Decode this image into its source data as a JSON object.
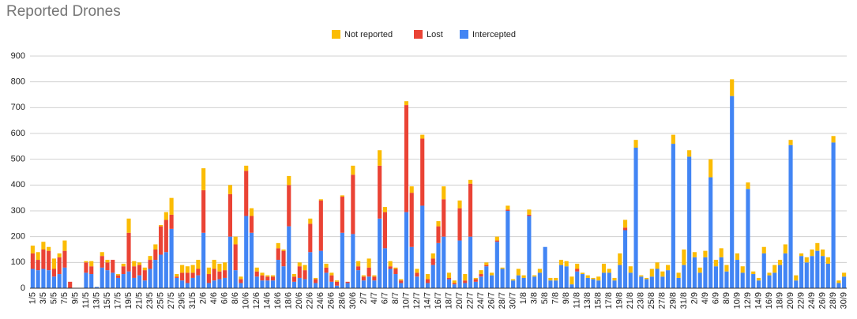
{
  "chart_data": {
    "type": "stacked_bar",
    "title": "Reported Drones",
    "categories": [
      "1/5",
      null,
      "3/5",
      null,
      "5/5",
      null,
      "7/5",
      null,
      "9/5",
      null,
      "11/5",
      null,
      "13/5",
      null,
      "15/5",
      null,
      "17/5",
      null,
      "19/5",
      null,
      "21/5",
      null,
      "23/5",
      null,
      "25/5",
      null,
      "27/5",
      null,
      "29/5",
      null,
      "31/5",
      null,
      "2/6",
      null,
      "4/6",
      null,
      "6/6",
      null,
      "8/6",
      null,
      "10/6",
      null,
      "12/6",
      null,
      "14/6",
      null,
      "16/6",
      null,
      "18/6",
      null,
      "20/6",
      null,
      "22/6",
      null,
      "24/6",
      null,
      "26/6",
      null,
      "28/6",
      null,
      "30/6",
      null,
      "2/7",
      null,
      "4/7",
      null,
      "6/7",
      null,
      "8/7",
      null,
      "10/7",
      null,
      "12/7",
      null,
      "14/7",
      null,
      "16/7",
      null,
      "18/7",
      null,
      "20/7",
      null,
      "22/7",
      null,
      "24/7",
      null,
      "26/7",
      null,
      "28/7",
      null,
      "30/7",
      null,
      "1/8",
      null,
      "3/8",
      null,
      "5/8",
      null,
      "7/8",
      null,
      "9/8",
      null,
      "11/8",
      null,
      "13/8",
      null,
      "15/8",
      null,
      "17/8",
      null,
      "19/8",
      null,
      "21/8",
      null,
      "23/8",
      null,
      "25/8",
      null,
      "27/8",
      null,
      "29/8",
      null,
      "31/8",
      null,
      "2/9",
      null,
      "4/9",
      null,
      "6/9",
      null,
      "8/9",
      null,
      "10/9",
      null,
      "12/9",
      null,
      "14/9",
      null,
      "16/9",
      null,
      "18/9",
      null,
      "20/9",
      null,
      "22/9",
      null,
      "24/9",
      null,
      "26/9",
      null,
      "28/9",
      null,
      "30/9"
    ],
    "series": [
      {
        "name": "Not reported",
        "color": "#fbbc04",
        "values": [
          30,
          30,
          30,
          15,
          40,
          15,
          40,
          0,
          0,
          0,
          5,
          20,
          0,
          15,
          10,
          0,
          5,
          10,
          55,
          20,
          10,
          10,
          15,
          20,
          5,
          30,
          65,
          10,
          30,
          25,
          30,
          35,
          85,
          25,
          35,
          30,
          30,
          35,
          30,
          10,
          20,
          30,
          15,
          10,
          5,
          5,
          20,
          5,
          35,
          10,
          15,
          20,
          20,
          5,
          5,
          15,
          10,
          5,
          5,
          0,
          35,
          20,
          5,
          35,
          5,
          60,
          20,
          20,
          5,
          5,
          15,
          25,
          15,
          15,
          20,
          20,
          20,
          50,
          20,
          10,
          30,
          25,
          15,
          5,
          15,
          10,
          10,
          15,
          5,
          15,
          5,
          25,
          10,
          20,
          5,
          15,
          0,
          10,
          10,
          20,
          20,
          30,
          20,
          5,
          10,
          5,
          15,
          35,
          15,
          10,
          45,
          30,
          25,
          30,
          5,
          5,
          30,
          25,
          20,
          20,
          35,
          20,
          60,
          25,
          20,
          20,
          25,
          70,
          25,
          35,
          25,
          65,
          25,
          25,
          25,
          10,
          10,
          25,
          10,
          30,
          20,
          35,
          20,
          20,
          10,
          20,
          25,
          30,
          25,
          25,
          25,
          10,
          15
        ]
      },
      {
        "name": "Lost",
        "color": "#ea4335",
        "values": [
          60,
          40,
          75,
          75,
          30,
          65,
          65,
          25,
          0,
          0,
          40,
          30,
          0,
          45,
          30,
          50,
          10,
          30,
          150,
          45,
          40,
          40,
          35,
          40,
          110,
          125,
          55,
          5,
          30,
          40,
          20,
          25,
          165,
          35,
          45,
          30,
          30,
          165,
          100,
          15,
          175,
          65,
          20,
          20,
          15,
          15,
          45,
          60,
          160,
          20,
          45,
          35,
          110,
          15,
          195,
          20,
          25,
          15,
          140,
          5,
          230,
          15,
          15,
          35,
          15,
          205,
          140,
          10,
          20,
          10,
          415,
          210,
          15,
          260,
          15,
          25,
          65,
          145,
          5,
          5,
          125,
          10,
          205,
          10,
          10,
          5,
          0,
          5,
          0,
          5,
          0,
          0,
          0,
          5,
          0,
          0,
          0,
          0,
          0,
          0,
          0,
          0,
          10,
          0,
          0,
          0,
          0,
          0,
          0,
          0,
          0,
          10,
          0,
          0,
          0,
          0,
          0,
          0,
          0,
          0,
          0,
          0,
          0,
          0,
          0,
          0,
          0,
          0,
          0,
          0,
          0,
          0,
          0,
          0,
          0,
          0,
          0,
          0,
          0,
          0,
          0,
          0,
          0,
          0,
          0,
          0,
          0,
          0,
          0,
          0,
          0,
          0,
          0
        ]
      },
      {
        "name": "Intercepted",
        "color": "#4285f4",
        "values": [
          75,
          70,
          75,
          70,
          45,
          55,
          80,
          0,
          0,
          0,
          60,
          55,
          5,
          80,
          70,
          60,
          40,
          55,
          65,
          40,
          50,
          30,
          75,
          110,
          130,
          140,
          230,
          40,
          30,
          20,
          40,
          50,
          215,
          20,
          30,
          35,
          40,
          200,
          70,
          20,
          280,
          215,
          45,
          30,
          30,
          30,
          110,
          85,
          240,
          25,
          40,
          35,
          140,
          20,
          145,
          60,
          25,
          10,
          215,
          20,
          210,
          70,
          30,
          45,
          30,
          270,
          155,
          75,
          55,
          20,
          295,
          160,
          45,
          320,
          20,
          90,
          175,
          200,
          35,
          15,
          185,
          20,
          200,
          25,
          45,
          85,
          50,
          180,
          75,
          300,
          30,
          50,
          40,
          280,
          45,
          60,
          160,
          30,
          30,
          90,
          85,
          15,
          65,
          55,
          40,
          35,
          30,
          60,
          60,
          30,
          90,
          225,
          60,
          545,
          45,
          35,
          45,
          75,
          45,
          70,
          560,
          40,
          90,
          510,
          120,
          60,
          120,
          430,
          85,
          120,
          65,
          745,
          110,
          60,
          385,
          55,
          30,
          135,
          50,
          60,
          90,
          135,
          555,
          30,
          125,
          100,
          125,
          145,
          125,
          95,
          565,
          20,
          45
        ]
      }
    ],
    "ylim": [
      0,
      900
    ],
    "yticks": [
      0,
      100,
      200,
      300,
      400,
      500,
      600,
      700,
      800,
      900
    ],
    "grid": true,
    "legend": "top"
  }
}
